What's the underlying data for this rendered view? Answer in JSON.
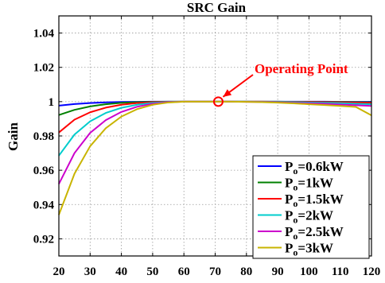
{
  "chart_data": {
    "type": "line",
    "title": "SRC Gain",
    "xlabel": "",
    "ylabel": "Gain",
    "xlim": [
      20,
      120
    ],
    "ylim": [
      0.91,
      1.05
    ],
    "xticks": [
      "20",
      "30",
      "40",
      "50",
      "60",
      "70",
      "80",
      "90",
      "100",
      "110",
      "120"
    ],
    "yticks": [
      "0.92",
      "0.94",
      "0.96",
      "0.98",
      "1",
      "1.02",
      "1.04"
    ],
    "grid": true,
    "legend_position": "bottom-right",
    "x": [
      20,
      25,
      30,
      35,
      40,
      45,
      50,
      55,
      60,
      65,
      70,
      75,
      80,
      85,
      90,
      95,
      100,
      105,
      110,
      115,
      120
    ],
    "series": [
      {
        "label_main": "P",
        "label_sub": "o",
        "label_rest": "=0.6kW",
        "color": "#0000ff",
        "values": [
          0.9977,
          0.9986,
          0.9992,
          0.9996,
          0.9998,
          0.9999,
          1.0,
          1.0,
          1.0,
          1.0,
          1.0,
          1.0,
          1.0,
          1.0,
          1.0,
          1.0,
          1.0,
          1.0,
          0.9999,
          0.9999,
          0.9999
        ]
      },
      {
        "label_main": "P",
        "label_sub": "o",
        "label_rest": "=1kW",
        "color": "#008000",
        "values": [
          0.9922,
          0.9952,
          0.9972,
          0.9985,
          0.9993,
          0.9997,
          0.9999,
          1.0,
          1.0,
          1.0,
          1.0,
          1.0,
          1.0,
          1.0,
          1.0,
          0.9999,
          0.9999,
          0.9998,
          0.9998,
          0.9997,
          0.9996
        ]
      },
      {
        "label_main": "P",
        "label_sub": "o",
        "label_rest": "=1.5kW",
        "color": "#ff0000",
        "values": [
          0.982,
          0.9895,
          0.9938,
          0.9965,
          0.9982,
          0.9992,
          0.9997,
          0.9999,
          1.0,
          1.0,
          1.0,
          1.0,
          1.0,
          1.0,
          0.9999,
          0.9999,
          0.9998,
          0.9997,
          0.9996,
          0.9995,
          0.9993
        ]
      },
      {
        "label_main": "P",
        "label_sub": "o",
        "label_rest": "=2kW",
        "color": "#00cccc",
        "values": [
          0.9685,
          0.9808,
          0.9885,
          0.9934,
          0.9964,
          0.9982,
          0.9993,
          0.9998,
          1.0,
          1.0,
          1.0,
          1.0,
          1.0,
          0.9999,
          0.9998,
          0.9997,
          0.9995,
          0.9993,
          0.9991,
          0.9988,
          0.9985
        ]
      },
      {
        "label_main": "P",
        "label_sub": "o",
        "label_rest": "=2.5kW",
        "color": "#cc00cc",
        "values": [
          0.952,
          0.97,
          0.9818,
          0.9892,
          0.994,
          0.997,
          0.9988,
          0.9997,
          1.0,
          1.0,
          1.0,
          1.0,
          0.9999,
          0.9998,
          0.9996,
          0.9993,
          0.999,
          0.9987,
          0.9983,
          0.9979,
          0.9975
        ]
      },
      {
        "label_main": "P",
        "label_sub": "o",
        "label_rest": "=3kW",
        "color": "#c8b400",
        "values": [
          0.934,
          0.958,
          0.974,
          0.9845,
          0.9913,
          0.9956,
          0.9982,
          0.9995,
          1.0,
          1.0,
          1.0,
          1.0,
          0.9999,
          0.9997,
          0.9994,
          0.999,
          0.9985,
          0.998,
          0.9975,
          0.9969,
          0.992
        ]
      }
    ],
    "annotation": {
      "text": "Operating Point",
      "x": 71,
      "y": 1.0,
      "color": "#ff0000"
    }
  }
}
